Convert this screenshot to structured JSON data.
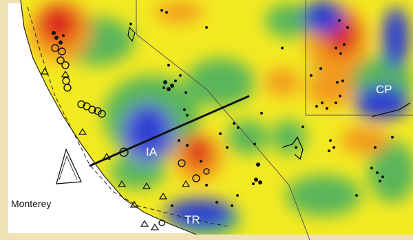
{
  "labels": {
    "ia": "IA",
    "cp": "CP",
    "tr": "TR",
    "monterey": "Monterey"
  },
  "colors": {
    "frame": "#f1e2b5",
    "ocean": "#ffffff",
    "field_green": "#5ab65a",
    "field_yellow": "#f3ea22",
    "field_orange": "#f39a1f",
    "field_red": "#dd2a1d",
    "field_blue": "#2d3fd0",
    "symbols": "#111111"
  }
}
